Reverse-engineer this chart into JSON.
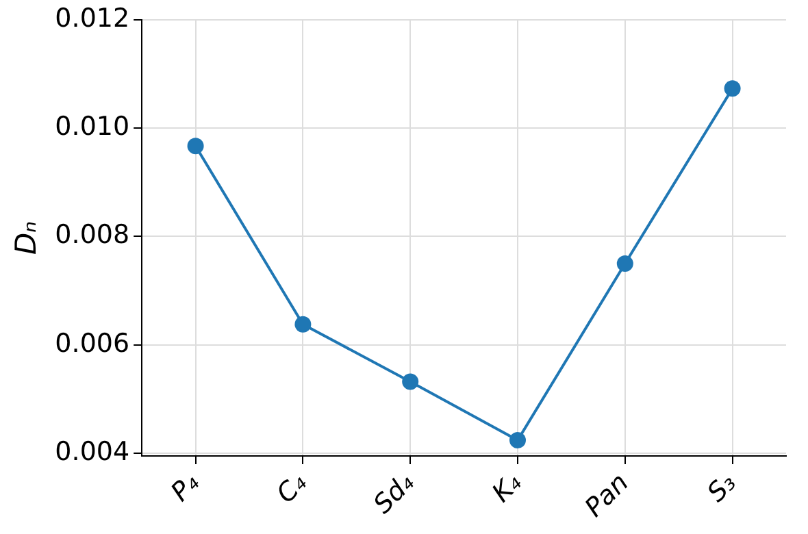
{
  "chart_data": {
    "type": "line",
    "ylabel": "Dₙ",
    "categories": [
      "P₄",
      "C₄",
      "Sd₄",
      "K₄",
      "Pan",
      "S₃"
    ],
    "series": [
      {
        "color": "#1f77b4",
        "values": [
          0.00967,
          0.00638,
          0.00532,
          0.00424,
          0.0075,
          0.01073
        ]
      }
    ],
    "ylim": [
      0.00395,
      0.012
    ],
    "yticks": [
      {
        "value": 0.004,
        "label": "0.004"
      },
      {
        "value": 0.006,
        "label": "0.006"
      },
      {
        "value": 0.008,
        "label": "0.008"
      },
      {
        "value": 0.01,
        "label": "0.010"
      },
      {
        "value": 0.012,
        "label": "0.012"
      }
    ],
    "grid": true,
    "legend": false,
    "marker": "circle",
    "line_style": "solid"
  }
}
